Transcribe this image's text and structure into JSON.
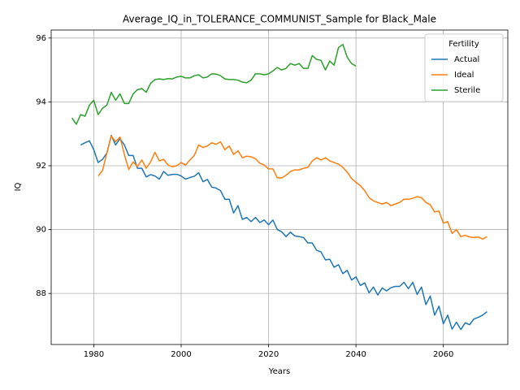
{
  "chart_data": {
    "type": "line",
    "title": "Average_IQ_in_TOLERANCE_COMMUNIST_Sample for Black_Male",
    "xlabel": "Years",
    "ylabel": "IQ",
    "x": [
      1975,
      1976,
      1977,
      1978,
      1979,
      1980,
      1981,
      1982,
      1983,
      1984,
      1985,
      1986,
      1987,
      1988,
      1989,
      1990,
      1991,
      1992,
      1993,
      1994,
      1995,
      1996,
      1997,
      1998,
      1999,
      2000,
      2001,
      2002,
      2003,
      2004,
      2005,
      2006,
      2007,
      2008,
      2009,
      2010,
      2011,
      2012,
      2013,
      2014,
      2015,
      2016,
      2017,
      2018,
      2019,
      2020,
      2021,
      2022,
      2023,
      2024,
      2025,
      2026,
      2027,
      2028,
      2029,
      2030,
      2031,
      2032,
      2033,
      2034,
      2035,
      2036,
      2037,
      2038,
      2039,
      2040,
      2041,
      2042,
      2043,
      2044,
      2045,
      2046,
      2047,
      2048,
      2049,
      2050,
      2051,
      2052,
      2053,
      2054,
      2055,
      2056,
      2057,
      2058,
      2059,
      2060,
      2061,
      2062,
      2063,
      2064,
      2065,
      2066,
      2067,
      2068,
      2069,
      2070
    ],
    "series": [
      {
        "name": "Actual",
        "color": "#1f77b4",
        "values": [
          null,
          null,
          92.65,
          92.72,
          92.78,
          92.5,
          92.1,
          92.2,
          92.4,
          92.95,
          92.65,
          92.85,
          92.65,
          92.32,
          92.32,
          91.92,
          91.92,
          91.65,
          91.72,
          91.68,
          91.58,
          91.82,
          91.7,
          91.73,
          91.73,
          91.68,
          91.58,
          91.63,
          91.67,
          91.78,
          91.5,
          91.57,
          91.33,
          91.3,
          91.22,
          90.95,
          90.95,
          90.52,
          90.75,
          90.32,
          90.38,
          90.25,
          90.38,
          90.22,
          90.3,
          90.15,
          90.3,
          90.0,
          89.93,
          89.78,
          89.92,
          89.8,
          89.78,
          89.75,
          89.58,
          89.58,
          89.35,
          89.3,
          89.05,
          89.07,
          88.82,
          88.9,
          88.62,
          88.72,
          88.42,
          88.52,
          88.25,
          88.33,
          88.02,
          88.2,
          87.95,
          88.17,
          88.08,
          88.18,
          88.22,
          88.22,
          88.35,
          88.15,
          88.35,
          87.97,
          88.2,
          87.65,
          87.92,
          87.32,
          87.6,
          87.05,
          87.32,
          86.88,
          87.1,
          86.87,
          87.08,
          87.02,
          87.2,
          87.25,
          87.32,
          87.43
        ]
      },
      {
        "name": "Ideal",
        "color": "#ff7f0e",
        "values": [
          null,
          null,
          null,
          null,
          null,
          null,
          91.68,
          91.85,
          92.4,
          92.93,
          92.75,
          92.9,
          92.35,
          91.88,
          92.12,
          91.98,
          92.18,
          91.92,
          92.12,
          92.42,
          92.15,
          92.2,
          92.02,
          91.97,
          92.0,
          92.1,
          92.02,
          92.18,
          92.32,
          92.65,
          92.57,
          92.62,
          92.72,
          92.67,
          92.75,
          92.5,
          92.62,
          92.35,
          92.47,
          92.25,
          92.3,
          92.28,
          92.22,
          92.08,
          92.02,
          91.9,
          91.9,
          91.62,
          91.62,
          91.7,
          91.82,
          91.87,
          91.87,
          91.92,
          91.95,
          92.15,
          92.25,
          92.18,
          92.25,
          92.15,
          92.1,
          92.05,
          91.95,
          91.8,
          91.6,
          91.48,
          91.38,
          91.22,
          91.0,
          90.9,
          90.85,
          90.8,
          90.85,
          90.75,
          90.8,
          90.85,
          90.95,
          90.95,
          90.98,
          91.03,
          91.0,
          90.85,
          90.78,
          90.55,
          90.58,
          90.2,
          90.25,
          89.88,
          90.0,
          89.78,
          89.82,
          89.77,
          89.75,
          89.77,
          89.7,
          89.78
        ]
      },
      {
        "name": "Sterile",
        "color": "#2ca02c",
        "values": [
          93.5,
          93.3,
          93.6,
          93.55,
          93.9,
          94.05,
          93.6,
          93.8,
          93.9,
          94.3,
          94.05,
          94.25,
          93.95,
          93.95,
          94.25,
          94.38,
          94.42,
          94.3,
          94.58,
          94.7,
          94.72,
          94.7,
          94.73,
          94.72,
          94.78,
          94.8,
          94.75,
          94.75,
          94.82,
          94.85,
          94.75,
          94.78,
          94.88,
          94.87,
          94.82,
          94.72,
          94.7,
          94.7,
          94.68,
          94.62,
          94.6,
          94.68,
          94.88,
          94.88,
          94.85,
          94.88,
          94.97,
          95.08,
          95.0,
          95.05,
          95.2,
          95.15,
          95.2,
          95.05,
          95.05,
          95.45,
          95.33,
          95.3,
          95.0,
          95.28,
          95.15,
          95.7,
          95.8,
          95.4,
          95.2,
          95.12,
          null,
          null,
          null,
          null,
          null,
          null,
          null,
          null,
          null,
          null,
          null,
          null,
          null,
          null,
          null,
          null,
          null,
          null,
          null,
          null,
          null,
          null,
          null,
          null,
          null,
          null,
          null,
          null,
          null,
          null
        ]
      }
    ],
    "xlim": [
      1970.25,
      2074.75
    ],
    "xticks": [
      1980,
      2000,
      2020,
      2040,
      2060
    ],
    "ylim": [
      86.4,
      96.25
    ],
    "yticks": [
      88,
      90,
      92,
      94,
      96
    ],
    "grid": true,
    "legend_title": "Fertility",
    "legend": "upper right"
  }
}
